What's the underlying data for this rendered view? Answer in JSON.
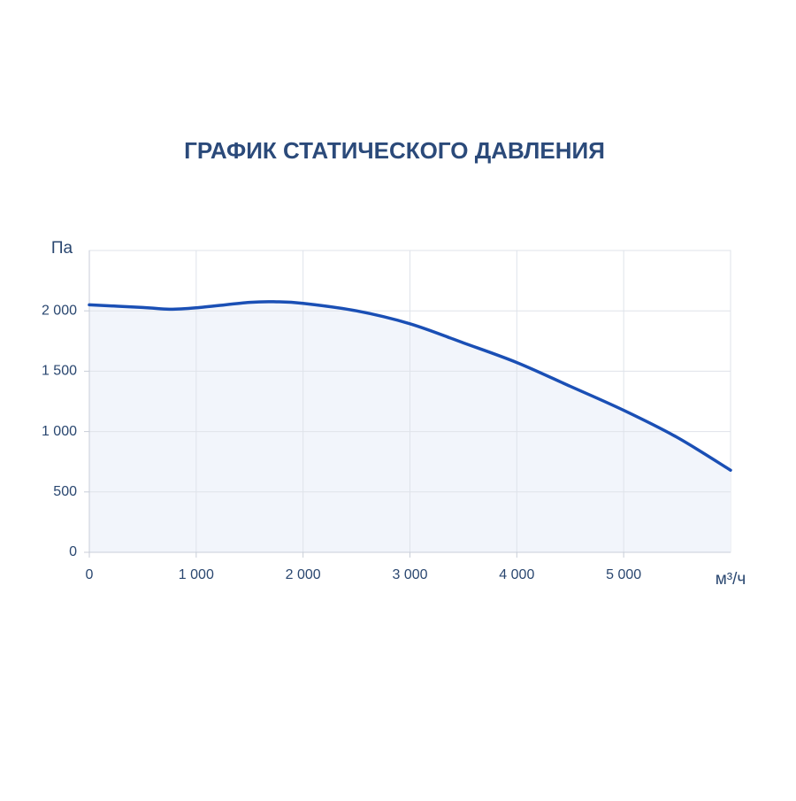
{
  "chart_data": {
    "type": "area",
    "title": "ГРАФИК СТАТИЧЕСКОГО ДАВЛЕНИЯ",
    "y_label": "Па",
    "x_label": "м³/ч",
    "x": [
      0,
      500,
      750,
      1000,
      1500,
      1750,
      2000,
      2500,
      3000,
      3500,
      4000,
      4500,
      5000,
      5500,
      6000
    ],
    "values": [
      2050,
      2028,
      2013,
      2025,
      2070,
      2075,
      2062,
      2000,
      1893,
      1735,
      1572,
      1375,
      1176,
      952,
      680
    ],
    "color": "#1a4fb5",
    "fill": "#f2f5fb",
    "xlim": [
      0,
      6000
    ],
    "ylim": [
      0,
      2500
    ],
    "xticks": [
      0,
      {
        "value": 1000,
        "label": "1 000"
      },
      {
        "value": 2000,
        "label": "2 000"
      },
      {
        "value": 3000,
        "label": "3 000"
      },
      {
        "value": 4000,
        "label": "4 000"
      },
      {
        "value": 5000,
        "label": "5 000"
      }
    ],
    "yticks": [
      0,
      500,
      {
        "value": 1000,
        "label": "1 000"
      },
      {
        "value": 1500,
        "label": "1 500"
      },
      {
        "value": 2000,
        "label": "2 000"
      }
    ],
    "grid": true
  }
}
